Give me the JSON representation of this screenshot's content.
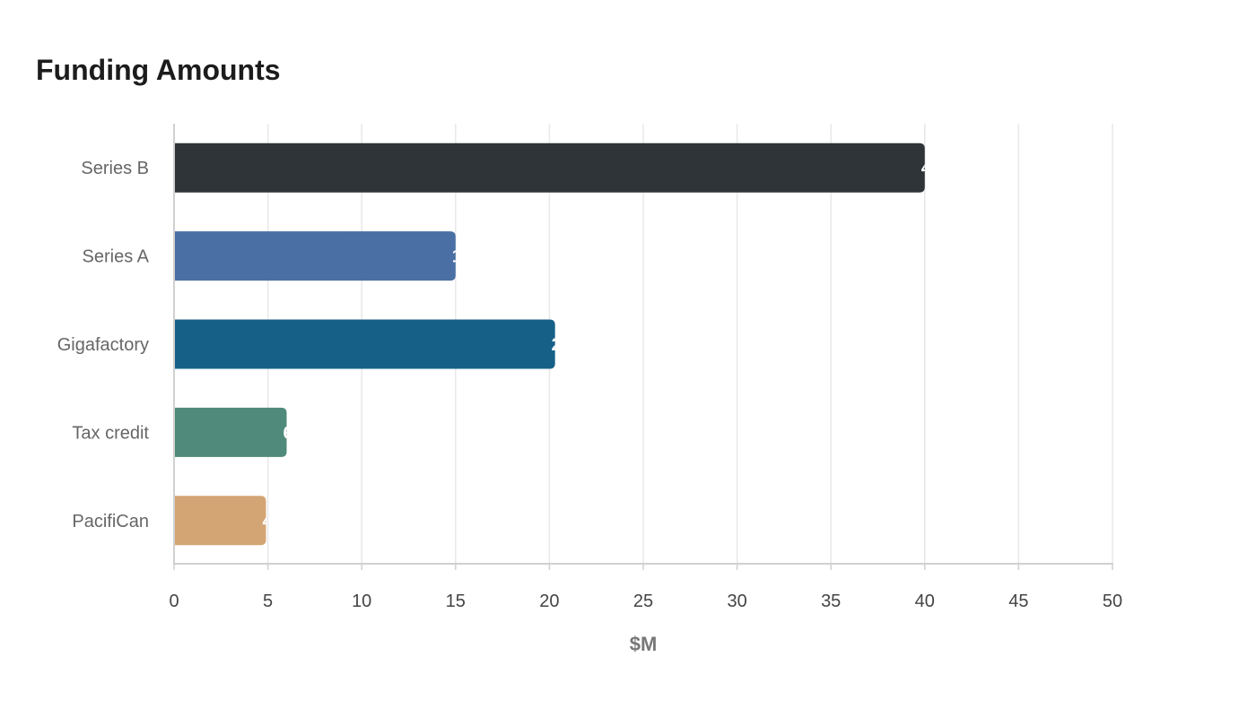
{
  "chart_data": {
    "type": "bar",
    "orientation": "horizontal",
    "title": "Funding Amounts",
    "xlabel": "$M",
    "ylabel": "",
    "categories": [
      "Series B",
      "Series A",
      "Gigafactory",
      "Tax credit",
      "PacifiCan"
    ],
    "values": [
      40,
      15,
      20.3,
      6,
      4.9
    ],
    "colors": [
      "#2e3437",
      "#4a6fa5",
      "#166088",
      "#4f8a7a",
      "#d4a574"
    ],
    "xlim": [
      0,
      50
    ],
    "xticks": [
      0,
      5,
      10,
      15,
      20,
      25,
      30,
      35,
      40,
      45,
      50
    ],
    "grid": true,
    "legend": "none"
  }
}
